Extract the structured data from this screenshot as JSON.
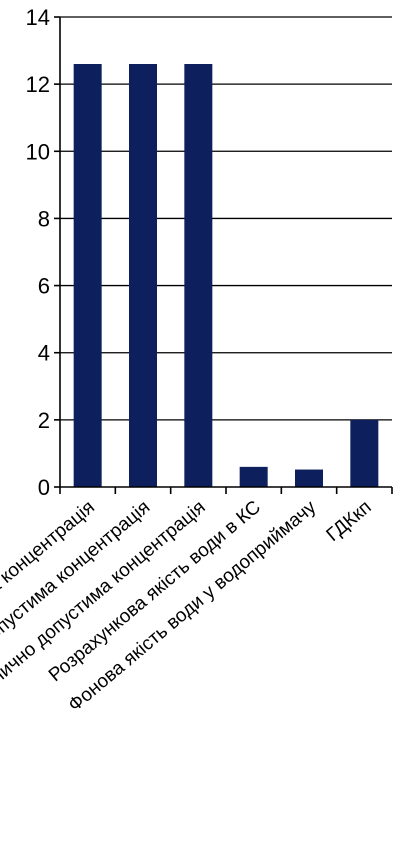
{
  "chart_data": {
    "type": "bar",
    "categories": [
      "Фактична концентрація",
      "Допустима концентрація",
      "Гранично допустима концентрація",
      "Розрахункова якість води в КС",
      "Фонова якість води у водоприймачу",
      "ГДКкп"
    ],
    "values": [
      12.6,
      12.6,
      12.6,
      0.6,
      0.52,
      2.0
    ],
    "title": "",
    "xlabel": "",
    "ylabel": "",
    "ylim": [
      0,
      14
    ],
    "yticks": [
      0,
      2,
      4,
      6,
      8,
      10,
      12,
      14
    ],
    "grid": true,
    "legend": "none",
    "bar_color": "#0d1f5c"
  }
}
